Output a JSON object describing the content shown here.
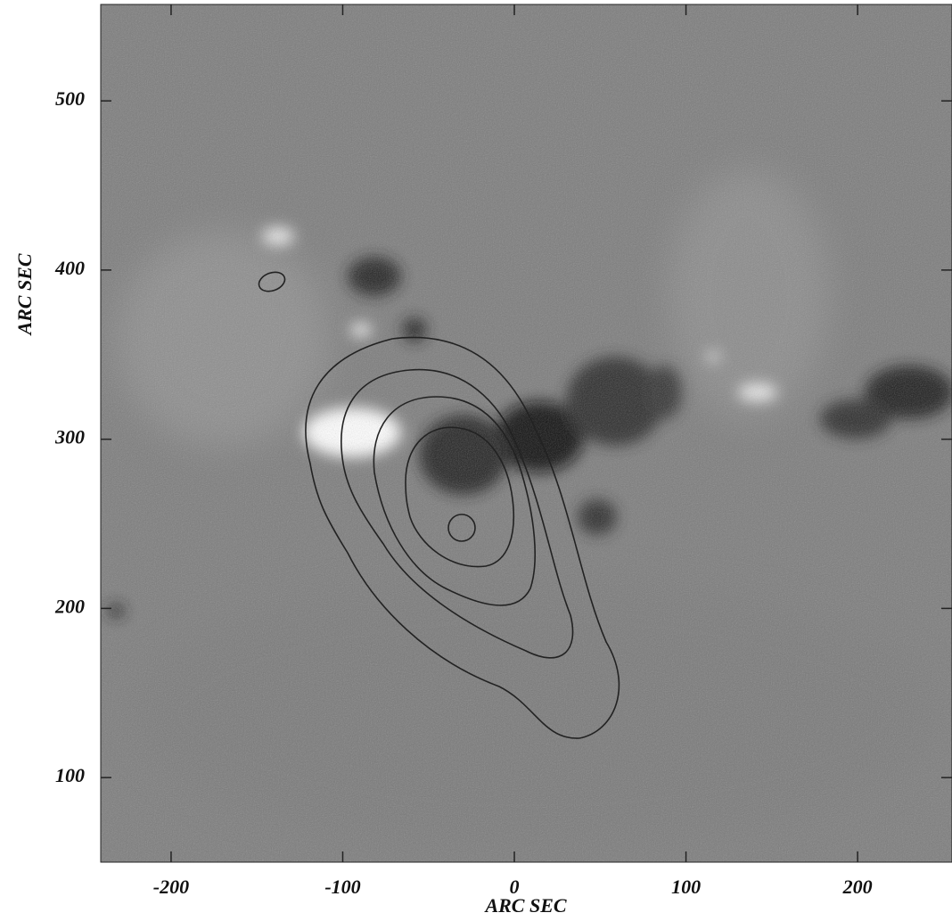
{
  "chart_data": {
    "type": "image",
    "xlabel": "ARC SEC",
    "ylabel": "ARC SEC",
    "xlim": [
      -241,
      255
    ],
    "ylim": [
      50,
      557
    ],
    "xticks": [
      -200,
      -100,
      0,
      100,
      200
    ],
    "yticks": [
      100,
      200,
      300,
      400,
      500
    ]
  }
}
